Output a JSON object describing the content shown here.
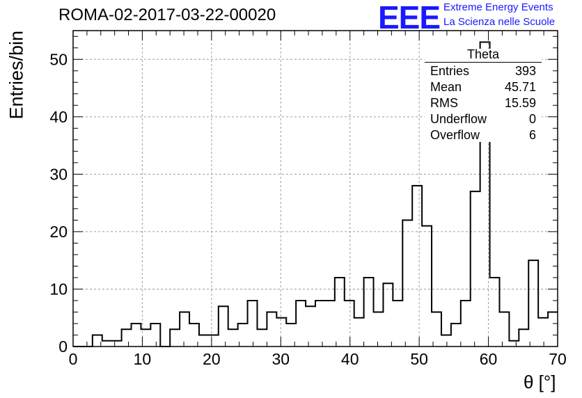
{
  "title": "ROMA-02-2017-03-22-00020",
  "logo": {
    "text": "EEE",
    "line1": "Extreme Energy Events",
    "line2": "La Scienza nelle Scuole",
    "color": "#1a1aff"
  },
  "stats": {
    "name": "Theta",
    "rows": [
      {
        "key": "Entries",
        "value": "393"
      },
      {
        "key": "Mean",
        "value": "45.71"
      },
      {
        "key": "RMS",
        "value": "15.59"
      },
      {
        "key": "Underflow",
        "value": "0"
      },
      {
        "key": "Overflow",
        "value": "6"
      }
    ]
  },
  "chart_data": {
    "type": "histogram",
    "title": "ROMA-02-2017-03-22-00020",
    "xlabel": "θ [°]",
    "ylabel": "Entries/bin",
    "xlim": [
      0,
      70
    ],
    "ylim": [
      0,
      55
    ],
    "grid": true,
    "bin_width": 1.4,
    "bin_start": 0,
    "values": [
      0,
      0,
      2,
      1,
      1,
      3,
      4,
      3,
      4,
      0,
      3,
      6,
      4,
      2,
      2,
      7,
      3,
      4,
      8,
      3,
      6,
      5,
      4,
      8,
      7,
      8,
      8,
      12,
      8,
      5,
      12,
      6,
      11,
      8,
      22,
      28,
      21,
      6,
      2,
      4,
      8,
      27,
      53,
      12,
      6,
      1,
      3,
      15,
      5,
      6
    ],
    "x_ticks": [
      0,
      10,
      20,
      30,
      40,
      50,
      60,
      70
    ],
    "y_ticks": [
      0,
      10,
      20,
      30,
      40,
      50
    ]
  }
}
